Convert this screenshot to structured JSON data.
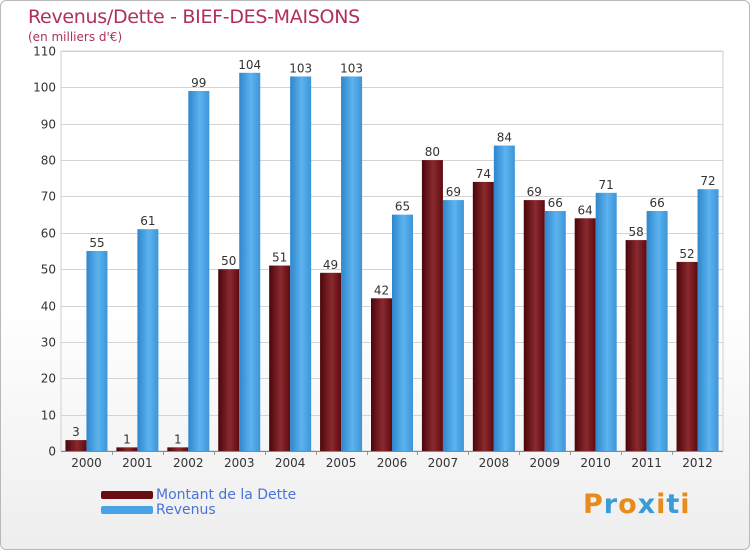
{
  "title": "Revenus/Dette - BIEF-DES-MAISONS",
  "subtitle": "(en milliers d'€)",
  "logo": {
    "text": "Proxiti",
    "letters": [
      "P",
      "r",
      "o",
      "x",
      "i",
      "t",
      "i"
    ],
    "colors": [
      "#e98a1d",
      "#3a9bd9",
      "#e98a1d",
      "#3a9bd9",
      "#e98a1d",
      "#3a9bd9",
      "#e98a1d"
    ]
  },
  "chart_data": {
    "type": "bar",
    "categories": [
      "2000",
      "2001",
      "2002",
      "2003",
      "2004",
      "2005",
      "2006",
      "2007",
      "2008",
      "2009",
      "2010",
      "2011",
      "2012"
    ],
    "series": [
      {
        "name": "Montant de la Dette",
        "color": "#7a1218",
        "values": [
          3,
          1,
          1,
          50,
          51,
          49,
          42,
          80,
          74,
          69,
          64,
          58,
          52
        ]
      },
      {
        "name": "Revenus",
        "color": "#4aa3e6",
        "values": [
          55,
          61,
          99,
          104,
          103,
          103,
          65,
          69,
          84,
          66,
          71,
          66,
          72
        ]
      }
    ],
    "ylim": [
      0,
      110
    ],
    "yticks": [
      0,
      10,
      20,
      30,
      40,
      50,
      60,
      70,
      80,
      90,
      100,
      110
    ],
    "grid": true,
    "legend": "bottom-left"
  }
}
